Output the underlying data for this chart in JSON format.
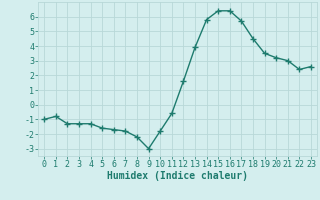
{
  "x": [
    0,
    1,
    2,
    3,
    4,
    5,
    6,
    7,
    8,
    9,
    10,
    11,
    12,
    13,
    14,
    15,
    16,
    17,
    18,
    19,
    20,
    21,
    22,
    23
  ],
  "y": [
    -1.0,
    -0.8,
    -1.3,
    -1.3,
    -1.3,
    -1.6,
    -1.7,
    -1.8,
    -2.2,
    -3.0,
    -1.8,
    -0.6,
    1.6,
    3.9,
    5.8,
    6.4,
    6.4,
    5.7,
    4.5,
    3.5,
    3.2,
    3.0,
    2.4,
    2.6
  ],
  "line_color": "#1e7b6e",
  "marker": "+",
  "markersize": 4,
  "markeredgewidth": 1.0,
  "linewidth": 1.0,
  "bg_color": "#d4eeee",
  "grid_color": "#b8d8d8",
  "xlabel": "Humidex (Indice chaleur)",
  "xlabel_fontsize": 7,
  "tick_fontsize": 6,
  "ylim": [
    -3.5,
    7.0
  ],
  "xlim": [
    -0.5,
    23.5
  ],
  "yticks": [
    -3,
    -2,
    -1,
    0,
    1,
    2,
    3,
    4,
    5,
    6
  ],
  "xticks": [
    0,
    1,
    2,
    3,
    4,
    5,
    6,
    7,
    8,
    9,
    10,
    11,
    12,
    13,
    14,
    15,
    16,
    17,
    18,
    19,
    20,
    21,
    22,
    23
  ]
}
